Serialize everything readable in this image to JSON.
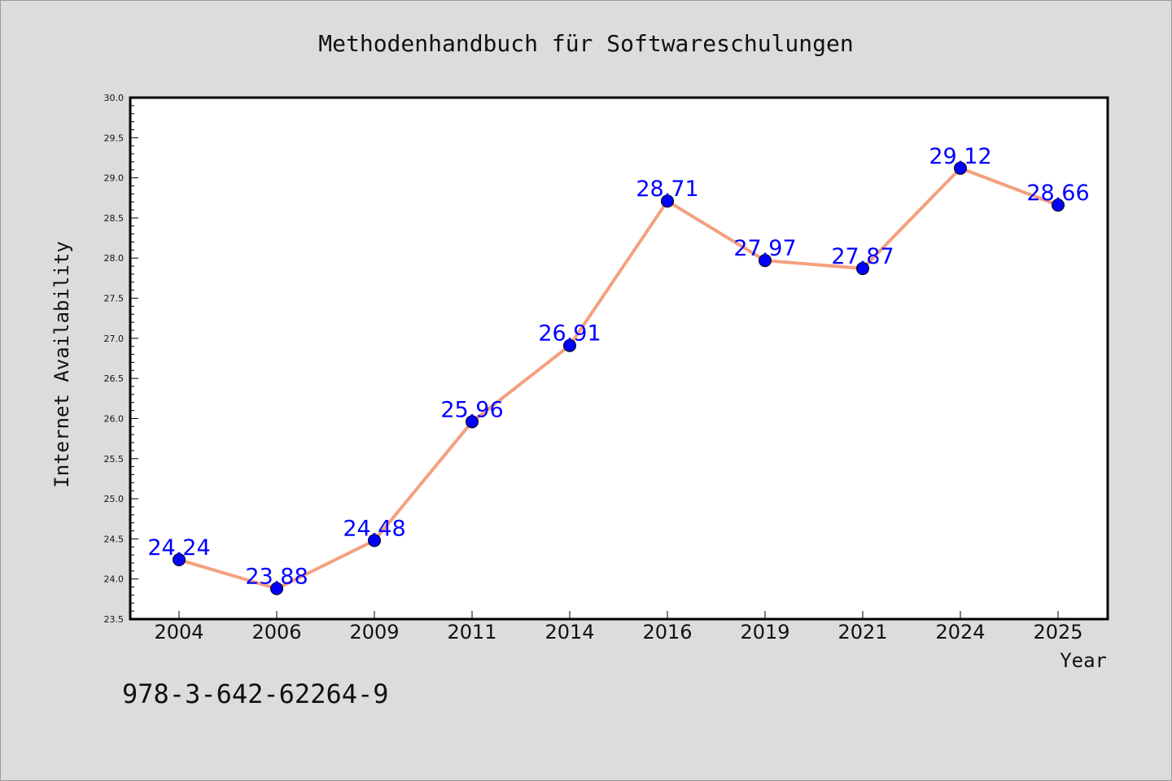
{
  "chart_data": {
    "type": "line",
    "title": "Methodenhandbuch für Softwareschulungen",
    "xlabel": "Year",
    "ylabel": "Internet Availability",
    "categories": [
      "2004",
      "2006",
      "2009",
      "2011",
      "2014",
      "2016",
      "2019",
      "2021",
      "2024",
      "2025"
    ],
    "series": [
      {
        "values": [
          24.24,
          23.88,
          24.48,
          25.96,
          26.91,
          28.71,
          27.97,
          27.87,
          29.12,
          28.66
        ],
        "labels": [
          "24.24",
          "23.88",
          "24.48",
          "25.96",
          "26.91",
          "28.71",
          "27.97",
          "27.87",
          "29.12",
          "28.66"
        ]
      }
    ],
    "ylim": [
      23.5,
      30.0
    ],
    "yticks": [
      "23.5",
      "24.0",
      "24.5",
      "25.0",
      "25.5",
      "26.0",
      "26.5",
      "27.0",
      "27.5",
      "28.0",
      "28.5",
      "29.0",
      "29.5",
      "30.0"
    ],
    "grid": false,
    "legend": "none",
    "colors": {
      "line": "#f4a07f",
      "marker": "#0000ff",
      "label": "#0000ff",
      "plot_bg": "#ffffff",
      "page_bg": "#dcdcdc"
    }
  },
  "annotation": "978-3-642-62264-9"
}
